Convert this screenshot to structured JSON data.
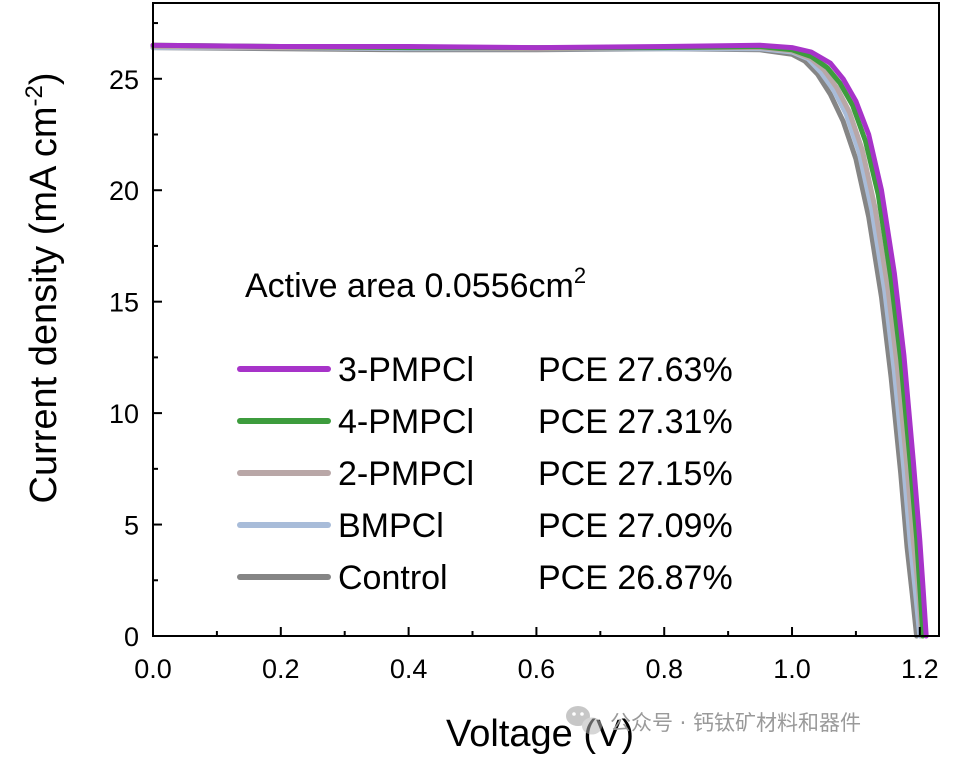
{
  "chart_data": {
    "type": "line",
    "title": "",
    "xlabel": "Voltage (V)",
    "ylabel": "Current density (mA cm",
    "ylabel_sup": "-2",
    "ylabel_end": ")",
    "xlim": [
      0.0,
      1.23
    ],
    "ylim": [
      0,
      28.4
    ],
    "xticks": [
      0.0,
      0.2,
      0.4,
      0.6,
      0.8,
      1.0,
      1.2
    ],
    "xtick_labels": [
      "0.0",
      "0.2",
      "0.4",
      "0.6",
      "0.8",
      "1.0",
      "1.2"
    ],
    "yticks": [
      0,
      5,
      10,
      15,
      20,
      25
    ],
    "ytick_labels": [
      "0",
      "5",
      "10",
      "15",
      "20",
      "25"
    ],
    "grid": false,
    "legend_position": "center-left",
    "annotation": {
      "text": "Active area  0.0556cm",
      "sup": "2"
    },
    "series": [
      {
        "name": "3-PMPCl",
        "pce": "PCE 27.63%",
        "color": "#a733c9",
        "x": [
          0.0,
          0.2,
          0.4,
          0.6,
          0.8,
          0.95,
          1.0,
          1.03,
          1.06,
          1.08,
          1.1,
          1.12,
          1.14,
          1.16,
          1.175,
          1.19,
          1.2,
          1.205,
          1.21
        ],
        "y": [
          26.5,
          26.45,
          26.45,
          26.4,
          26.45,
          26.5,
          26.4,
          26.2,
          25.7,
          25.0,
          24.0,
          22.5,
          20.0,
          16.3,
          12.6,
          7.8,
          4.3,
          2.2,
          0.0
        ]
      },
      {
        "name": "4-PMPCl",
        "pce": "PCE 27.31%",
        "color": "#3d9c3d",
        "x": [
          0.0,
          0.2,
          0.4,
          0.6,
          0.8,
          0.95,
          1.0,
          1.03,
          1.055,
          1.075,
          1.095,
          1.115,
          1.135,
          1.155,
          1.17,
          1.185,
          1.195,
          1.2,
          1.205
        ],
        "y": [
          26.5,
          26.45,
          26.4,
          26.4,
          26.4,
          26.45,
          26.3,
          26.0,
          25.5,
          24.8,
          23.8,
          22.2,
          19.8,
          16.0,
          12.4,
          7.8,
          4.4,
          2.2,
          0.0
        ]
      },
      {
        "name": "2-PMPCl",
        "pce": "PCE 27.15%",
        "color": "#b9a7a7",
        "x": [
          0.0,
          0.2,
          0.4,
          0.6,
          0.8,
          0.95,
          1.0,
          1.03,
          1.05,
          1.07,
          1.09,
          1.11,
          1.13,
          1.15,
          1.165,
          1.18,
          1.19,
          1.198,
          1.203
        ],
        "y": [
          26.45,
          26.4,
          26.4,
          26.35,
          26.4,
          26.4,
          26.25,
          25.9,
          25.4,
          24.6,
          23.5,
          21.8,
          19.2,
          15.6,
          12.0,
          7.6,
          4.2,
          2.0,
          0.0
        ]
      },
      {
        "name": "BMPCl",
        "pce": "PCE 27.09%",
        "color": "#a8bcd9",
        "x": [
          0.0,
          0.2,
          0.4,
          0.6,
          0.8,
          0.95,
          1.0,
          1.025,
          1.045,
          1.065,
          1.085,
          1.105,
          1.125,
          1.145,
          1.16,
          1.175,
          1.185,
          1.193,
          1.2
        ],
        "y": [
          26.4,
          26.4,
          26.35,
          26.35,
          26.35,
          26.35,
          26.2,
          25.9,
          25.3,
          24.5,
          23.4,
          21.7,
          19.1,
          15.5,
          11.9,
          7.5,
          4.2,
          2.0,
          0.0
        ]
      },
      {
        "name": "Control",
        "pce": "PCE 26.87%",
        "color": "#858585",
        "x": [
          0.0,
          0.2,
          0.4,
          0.6,
          0.8,
          0.95,
          1.0,
          1.02,
          1.04,
          1.06,
          1.08,
          1.1,
          1.12,
          1.14,
          1.155,
          1.17,
          1.18,
          1.188,
          1.195
        ],
        "y": [
          26.4,
          26.35,
          26.3,
          26.3,
          26.35,
          26.3,
          26.1,
          25.8,
          25.2,
          24.3,
          23.1,
          21.4,
          18.8,
          15.2,
          11.6,
          7.3,
          4.0,
          1.9,
          0.0
        ]
      }
    ]
  },
  "watermark": {
    "icon": "wechat-icon",
    "text": "公众号 · 钙钛矿材料和器件"
  }
}
